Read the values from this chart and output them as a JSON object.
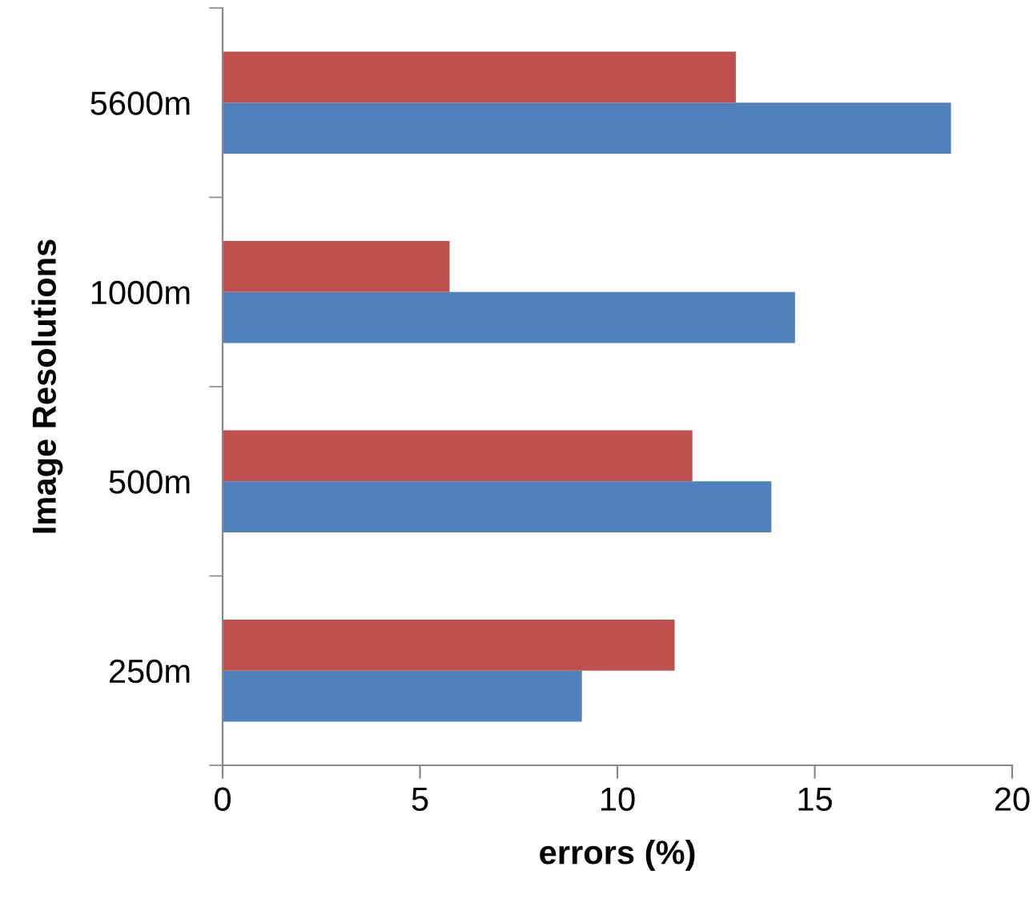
{
  "chart_data": {
    "type": "bar",
    "orientation": "horizontal",
    "xlabel": "errors (%)",
    "ylabel": "Image Resolutions",
    "categories": [
      "5600m",
      "1000m",
      "500m",
      "250m"
    ],
    "series": [
      {
        "color": "#4f81bd",
        "values": [
          18.45,
          14.5,
          13.9,
          9.1
        ]
      },
      {
        "color": "#c0504d",
        "values": [
          13.0,
          5.75,
          11.9,
          11.45
        ]
      }
    ],
    "xlim": [
      0,
      20
    ],
    "xticks": [
      0,
      5,
      10,
      15,
      20
    ],
    "grid": false
  }
}
